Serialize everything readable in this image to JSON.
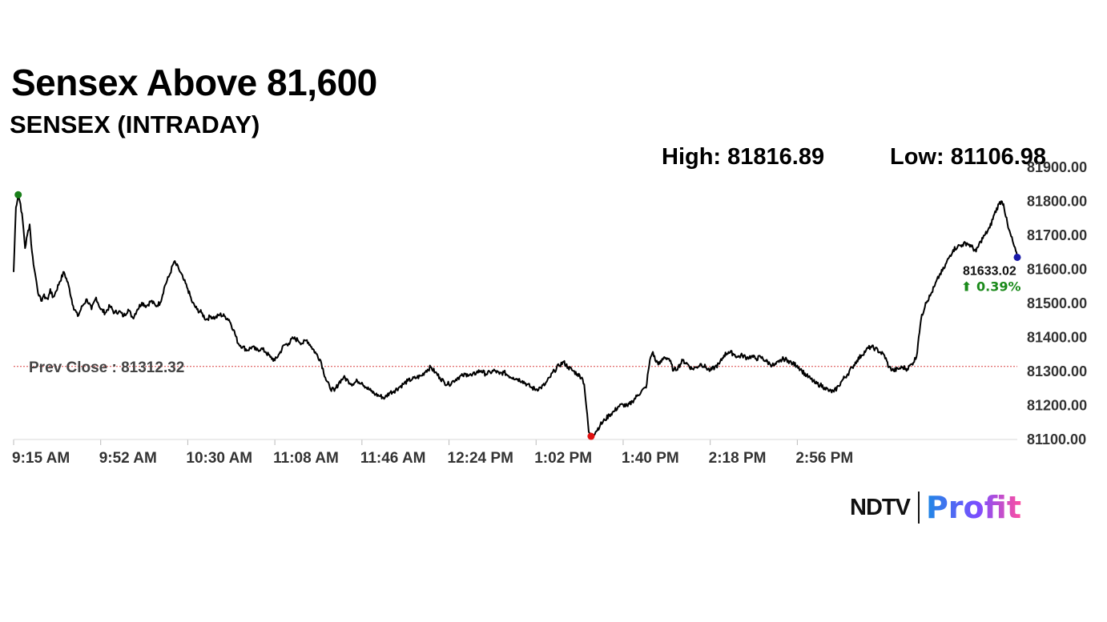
{
  "header": {
    "headline": "Sensex Above 81,600",
    "subtitle": "SENSEX (INTRADAY)",
    "high_label": "High: 81816.89",
    "low_label": "Low: 81106.98"
  },
  "logo": {
    "ndtv": "NDTV",
    "profit": "Profit"
  },
  "colors": {
    "line": "#000000",
    "high_marker": "#1a7f1a",
    "low_marker": "#e01010",
    "last_marker": "#1a1aa8",
    "prev_close_line": "#d94040",
    "change_up": "#1a8a1a",
    "axis": "#d8d8d8"
  },
  "chart_data": {
    "type": "line",
    "title": "SENSEX (INTRADAY)",
    "xlabel": "",
    "ylabel": "",
    "x_ticks": [
      "9:15 AM",
      "9:52 AM",
      "10:30 AM",
      "11:08 AM",
      "11:46 AM",
      "12:24 PM",
      "1:02 PM",
      "1:40 PM",
      "2:18 PM",
      "2:56 PM"
    ],
    "y_ticks": [
      "81100.00",
      "81200.00",
      "81300.00",
      "81400.00",
      "81500.00",
      "81600.00",
      "81700.00",
      "81800.00",
      "81900.00"
    ],
    "ylim": [
      81100,
      81900
    ],
    "xlim_minutes_after_915": [
      0,
      375
    ],
    "grid": false,
    "prev_close": 81312.32,
    "prev_close_label": "Prev Close : 81312.32",
    "high": 81816.89,
    "low": 81106.98,
    "last_value": 81633.02,
    "last_value_label": "81633.02",
    "change_label": "⬆ 0.39%",
    "series": [
      {
        "points": [
          [
            0,
            81590
          ],
          [
            1,
            81780
          ],
          [
            2,
            81817
          ],
          [
            3,
            81790
          ],
          [
            4,
            81740
          ],
          [
            5,
            81660
          ],
          [
            6,
            81700
          ],
          [
            7,
            81730
          ],
          [
            8,
            81650
          ],
          [
            9,
            81600
          ],
          [
            10,
            81560
          ],
          [
            11,
            81520
          ],
          [
            12,
            81505
          ],
          [
            13,
            81520
          ],
          [
            14,
            81515
          ],
          [
            15,
            81510
          ],
          [
            16,
            81540
          ],
          [
            17,
            81515
          ],
          [
            18,
            81525
          ],
          [
            20,
            81560
          ],
          [
            22,
            81590
          ],
          [
            24,
            81550
          ],
          [
            26,
            81490
          ],
          [
            28,
            81460
          ],
          [
            30,
            81490
          ],
          [
            32,
            81510
          ],
          [
            34,
            81480
          ],
          [
            36,
            81515
          ],
          [
            38,
            81480
          ],
          [
            40,
            81470
          ],
          [
            42,
            81490
          ],
          [
            44,
            81470
          ],
          [
            46,
            81475
          ],
          [
            48,
            81460
          ],
          [
            50,
            81480
          ],
          [
            52,
            81455
          ],
          [
            54,
            81480
          ],
          [
            56,
            81500
          ],
          [
            58,
            81490
          ],
          [
            60,
            81505
          ],
          [
            62,
            81490
          ],
          [
            64,
            81500
          ],
          [
            66,
            81550
          ],
          [
            68,
            81580
          ],
          [
            70,
            81620
          ],
          [
            72,
            81600
          ],
          [
            74,
            81570
          ],
          [
            76,
            81540
          ],
          [
            78,
            81500
          ],
          [
            80,
            81480
          ],
          [
            82,
            81470
          ],
          [
            84,
            81450
          ],
          [
            86,
            81460
          ],
          [
            88,
            81455
          ],
          [
            90,
            81465
          ],
          [
            92,
            81460
          ],
          [
            94,
            81450
          ],
          [
            96,
            81420
          ],
          [
            98,
            81380
          ],
          [
            100,
            81370
          ],
          [
            102,
            81360
          ],
          [
            104,
            81370
          ],
          [
            106,
            81360
          ],
          [
            108,
            81365
          ],
          [
            110,
            81355
          ],
          [
            112,
            81340
          ],
          [
            114,
            81330
          ],
          [
            116,
            81350
          ],
          [
            118,
            81375
          ],
          [
            120,
            81380
          ],
          [
            122,
            81395
          ],
          [
            124,
            81390
          ],
          [
            126,
            81380
          ],
          [
            128,
            81390
          ],
          [
            130,
            81370
          ],
          [
            132,
            81350
          ],
          [
            134,
            81330
          ],
          [
            136,
            81280
          ],
          [
            138,
            81250
          ],
          [
            140,
            81240
          ],
          [
            142,
            81265
          ],
          [
            144,
            81280
          ],
          [
            146,
            81270
          ],
          [
            148,
            81260
          ],
          [
            150,
            81270
          ],
          [
            152,
            81265
          ],
          [
            154,
            81250
          ],
          [
            156,
            81240
          ],
          [
            158,
            81230
          ],
          [
            160,
            81225
          ],
          [
            162,
            81220
          ],
          [
            164,
            81235
          ],
          [
            166,
            81240
          ],
          [
            168,
            81250
          ],
          [
            170,
            81260
          ],
          [
            172,
            81270
          ],
          [
            174,
            81275
          ],
          [
            176,
            81280
          ],
          [
            178,
            81285
          ],
          [
            180,
            81300
          ],
          [
            182,
            81310
          ],
          [
            184,
            81295
          ],
          [
            186,
            81280
          ],
          [
            188,
            81265
          ],
          [
            190,
            81260
          ],
          [
            192,
            81270
          ],
          [
            194,
            81280
          ],
          [
            196,
            81285
          ],
          [
            198,
            81290
          ],
          [
            200,
            81285
          ],
          [
            202,
            81295
          ],
          [
            204,
            81300
          ],
          [
            206,
            81290
          ],
          [
            208,
            81295
          ],
          [
            210,
            81300
          ],
          [
            212,
            81290
          ],
          [
            214,
            81295
          ],
          [
            216,
            81285
          ],
          [
            218,
            81280
          ],
          [
            220,
            81275
          ],
          [
            222,
            81270
          ],
          [
            224,
            81260
          ],
          [
            226,
            81250
          ],
          [
            228,
            81245
          ],
          [
            230,
            81250
          ],
          [
            232,
            81260
          ],
          [
            234,
            81280
          ],
          [
            236,
            81300
          ],
          [
            238,
            81315
          ],
          [
            240,
            81325
          ],
          [
            242,
            81310
          ],
          [
            244,
            81300
          ],
          [
            246,
            81290
          ],
          [
            248,
            81280
          ],
          [
            249,
            81260
          ],
          [
            250,
            81190
          ],
          [
            251,
            81120
          ],
          [
            252,
            81107
          ],
          [
            254,
            81120
          ],
          [
            256,
            81140
          ],
          [
            258,
            81155
          ],
          [
            260,
            81170
          ],
          [
            262,
            81180
          ],
          [
            264,
            81195
          ],
          [
            266,
            81200
          ],
          [
            268,
            81195
          ],
          [
            270,
            81210
          ],
          [
            272,
            81225
          ],
          [
            274,
            81240
          ],
          [
            276,
            81250
          ],
          [
            277,
            81300
          ],
          [
            278,
            81340
          ],
          [
            279,
            81355
          ],
          [
            280,
            81330
          ],
          [
            282,
            81320
          ],
          [
            284,
            81340
          ],
          [
            286,
            81335
          ],
          [
            288,
            81300
          ],
          [
            290,
            81310
          ],
          [
            292,
            81330
          ],
          [
            294,
            81320
          ],
          [
            296,
            81305
          ],
          [
            298,
            81310
          ],
          [
            300,
            81320
          ],
          [
            302,
            81310
          ],
          [
            304,
            81300
          ],
          [
            306,
            81310
          ],
          [
            308,
            81320
          ],
          [
            310,
            81345
          ],
          [
            312,
            81355
          ],
          [
            314,
            81350
          ],
          [
            316,
            81340
          ],
          [
            318,
            81345
          ],
          [
            320,
            81338
          ],
          [
            322,
            81342
          ],
          [
            324,
            81335
          ],
          [
            326,
            81340
          ],
          [
            328,
            81330
          ],
          [
            330,
            81320
          ],
          [
            332,
            81315
          ],
          [
            334,
            81325
          ],
          [
            336,
            81335
          ],
          [
            338,
            81330
          ],
          [
            340,
            81320
          ],
          [
            342,
            81315
          ],
          [
            344,
            81300
          ],
          [
            346,
            81285
          ],
          [
            348,
            81275
          ],
          [
            350,
            81262
          ],
          [
            352,
            81258
          ],
          [
            354,
            81250
          ],
          [
            356,
            81240
          ],
          [
            358,
            81238
          ],
          [
            360,
            81255
          ],
          [
            362,
            81275
          ],
          [
            364,
            81290
          ],
          [
            366,
            81310
          ],
          [
            368,
            81330
          ],
          [
            370,
            81345
          ],
          [
            372,
            81360
          ],
          [
            374,
            81370
          ],
          [
            376,
            81365
          ],
          [
            378,
            81355
          ],
          [
            380,
            81345
          ],
          [
            382,
            81310
          ],
          [
            384,
            81300
          ],
          [
            386,
            81305
          ],
          [
            388,
            81310
          ],
          [
            390,
            81305
          ],
          [
            392,
            81320
          ],
          [
            394,
            81340
          ],
          [
            395,
            81400
          ],
          [
            396,
            81450
          ],
          [
            398,
            81500
          ],
          [
            400,
            81520
          ],
          [
            402,
            81550
          ],
          [
            404,
            81580
          ],
          [
            406,
            81600
          ],
          [
            408,
            81630
          ],
          [
            410,
            81655
          ],
          [
            412,
            81665
          ],
          [
            414,
            81670
          ],
          [
            416,
            81675
          ],
          [
            418,
            81665
          ],
          [
            420,
            81650
          ],
          [
            422,
            81680
          ],
          [
            424,
            81700
          ],
          [
            426,
            81720
          ],
          [
            428,
            81760
          ],
          [
            430,
            81790
          ],
          [
            431,
            81798
          ],
          [
            432,
            81790
          ],
          [
            434,
            81720
          ],
          [
            436,
            81680
          ],
          [
            438,
            81633
          ]
        ]
      }
    ]
  }
}
